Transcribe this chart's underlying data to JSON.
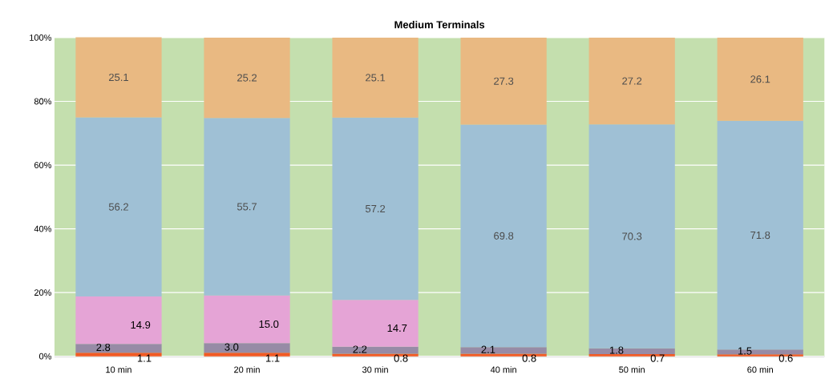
{
  "chart_data": {
    "type": "bar",
    "stacked": true,
    "title": "Medium Terminals",
    "categories": [
      "10 min",
      "20 min",
      "30 min",
      "40 min",
      "50 min",
      "60 min"
    ],
    "series": [
      {
        "color": "#f15a24",
        "values": [
          1.1,
          1.1,
          0.8,
          0.8,
          0.7,
          0.6
        ],
        "value_labels": [
          "1.1",
          "1.1",
          "0.8",
          "0.8",
          "0.7",
          "0.6"
        ]
      },
      {
        "color": "#978ba6",
        "values": [
          2.8,
          3.0,
          2.2,
          2.1,
          1.8,
          1.5
        ],
        "value_labels": [
          "2.8",
          "3.0",
          "2.2",
          "2.1",
          "1.8",
          "1.5"
        ]
      },
      {
        "color": "#e5a4d6",
        "values": [
          14.9,
          15.0,
          14.7,
          null,
          null,
          null
        ],
        "value_labels": [
          "14.9",
          "15.0",
          "14.7",
          null,
          null,
          null
        ]
      },
      {
        "color": "#9fc0d5",
        "values": [
          56.2,
          55.7,
          57.2,
          69.8,
          70.3,
          71.8
        ],
        "value_labels": [
          "56.2",
          "55.7",
          "57.2",
          "69.8",
          "70.3",
          "71.8"
        ]
      },
      {
        "color": "#e9b982",
        "values": [
          25.1,
          25.2,
          25.1,
          27.3,
          27.2,
          26.1
        ],
        "value_labels": [
          "25.1",
          "25.2",
          "25.1",
          "27.3",
          "27.2",
          "26.1"
        ]
      }
    ],
    "ylim": [
      0,
      100
    ],
    "yticks": [
      {
        "value": 0,
        "label": "0%"
      },
      {
        "value": 20,
        "label": "20%"
      },
      {
        "value": 40,
        "label": "40%"
      },
      {
        "value": 60,
        "label": "60%"
      },
      {
        "value": 80,
        "label": "80%"
      },
      {
        "value": 100,
        "label": "100%"
      }
    ],
    "bands": [
      {
        "axis": "y",
        "from": 0,
        "to": 100,
        "color": "#c4dfae"
      }
    ],
    "grid": "y"
  }
}
